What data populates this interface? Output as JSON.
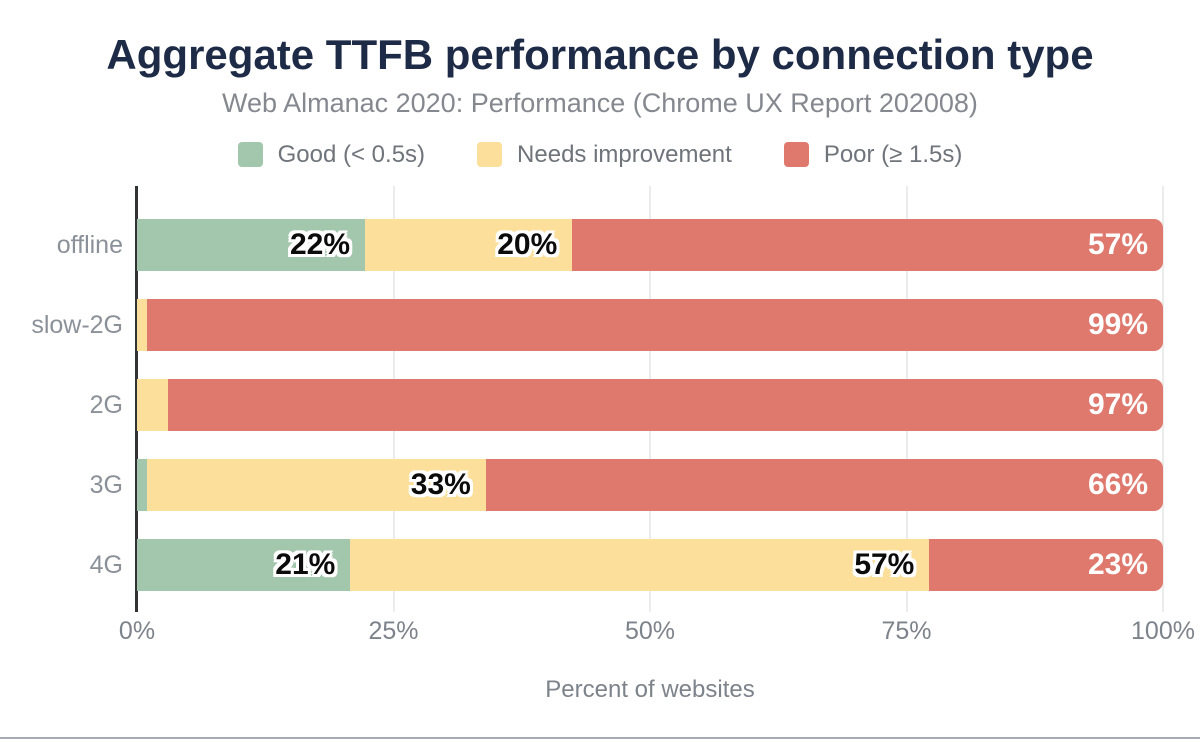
{
  "chart_data": {
    "type": "bar",
    "variant": "horizontal-stacked",
    "title": "Aggregate TTFB performance by connection type",
    "subtitle": "Web Almanac 2020: Performance (Chrome UX Report 202008)",
    "categories": [
      "offline",
      "slow-2G",
      "2G",
      "3G",
      "4G"
    ],
    "series": [
      {
        "name": "Good (< 0.5s)",
        "color": "#a3c7ac",
        "values": [
          22,
          0,
          0,
          1,
          21
        ]
      },
      {
        "name": "Needs improvement",
        "color": "#fcdf9b",
        "values": [
          20,
          1,
          3,
          33,
          57
        ]
      },
      {
        "name": "Poor (≥ 1.5s)",
        "color": "#e0796d",
        "values": [
          57,
          99,
          97,
          66,
          23
        ]
      }
    ],
    "value_suffix": "%",
    "xlabel": "Percent of websites",
    "x_ticks": [
      "0%",
      "25%",
      "50%",
      "75%",
      "100%"
    ],
    "xlim": [
      0,
      100
    ],
    "grid": "vertical",
    "legend_position": "top",
    "colors": {
      "title_text": "#1e2b47",
      "subtitle_text": "#85898f",
      "axis_text": "#7d838b",
      "category_text": "#8b9199",
      "gridline": "#ececec",
      "axis_line": "#323335",
      "label_on_dark_segment": "#ffffff",
      "label_on_light_segment": "#0b0b0b"
    }
  }
}
